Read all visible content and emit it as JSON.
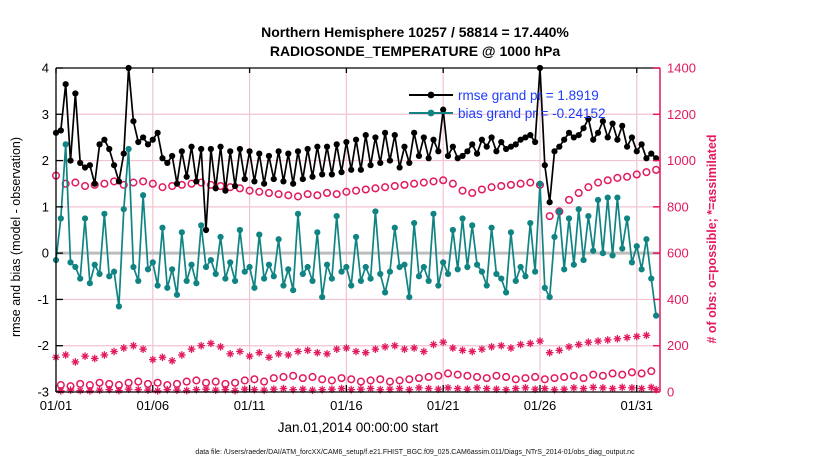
{
  "title": {
    "line1": "Northern Hemisphere 10257 / 58814 = 17.440%",
    "line2": "RADIOSONDE_TEMPERATURE @ 1000 hPa"
  },
  "legend": {
    "entries": [
      {
        "label": "rmse grand pr = 1.8919",
        "series": "rmse"
      },
      {
        "label": "bias grand pr = -0.24152",
        "series": "bias"
      }
    ]
  },
  "axes": {
    "left_label": "rmse and bias (model - observation)",
    "right_label": "# of obs: o=possible; *=assimilated",
    "xlabel": "Jan.01,2014 00:00:00 start",
    "left_ticks": [
      4,
      3,
      2,
      1,
      0,
      -1,
      -2,
      -3
    ],
    "right_ticks": [
      1400,
      1200,
      1000,
      800,
      600,
      400,
      200,
      0
    ],
    "x_ticks": [
      {
        "day": 1,
        "label": "01/01"
      },
      {
        "day": 6,
        "label": "01/06"
      },
      {
        "day": 11,
        "label": "01/11"
      },
      {
        "day": 16,
        "label": "01/16"
      },
      {
        "day": 21,
        "label": "01/21"
      },
      {
        "day": 26,
        "label": "01/26"
      },
      {
        "day": 31,
        "label": "01/31"
      }
    ]
  },
  "caption": "data file: /Users/raeder/DAI/ATM_forcXX/CAM6_setup/f.e21.FHIST_BGC.f09_025.CAM6assim.011/Diags_NTrS_2014-01/obs_diag_output.nc",
  "colors": {
    "rmse": "#000000",
    "bias": "#108383",
    "obs": "#e2195f",
    "legend_text": "#1e3cff",
    "grid": "#f2c3d2",
    "zero_line": "#bdbdbd"
  },
  "chart_data": {
    "type": "line",
    "title": "Northern Hemisphere 10257 / 58814 = 17.440% | RADIOSONDE_TEMPERATURE @ 1000 hPa",
    "xlabel": "Jan.01,2014 00:00:00 start",
    "ylabel_left": "rmse and bias (model - observation)",
    "ylabel_right": "# of obs: o=possible; *=assimilated",
    "ylim_left": [
      -3,
      4
    ],
    "ylim_right": [
      0,
      1400
    ],
    "xlim": [
      1,
      32.2
    ],
    "grid": true,
    "legend_position": "top-right",
    "grand_stats": {
      "rmse_grand_pr": 1.8919,
      "bias_grand_pr": -0.24152
    },
    "x_unit": "day of January 2014 (6-hourly bins)",
    "x": [
      1,
      1.25,
      1.5,
      1.75,
      2,
      2.25,
      2.5,
      2.75,
      3,
      3.25,
      3.5,
      3.75,
      4,
      4.25,
      4.5,
      4.75,
      5,
      5.25,
      5.5,
      5.75,
      6,
      6.25,
      6.5,
      6.75,
      7,
      7.25,
      7.5,
      7.75,
      8,
      8.25,
      8.5,
      8.75,
      9,
      9.25,
      9.5,
      9.75,
      10,
      10.25,
      10.5,
      10.75,
      11,
      11.25,
      11.5,
      11.75,
      12,
      12.25,
      12.5,
      12.75,
      13,
      13.25,
      13.5,
      13.75,
      14,
      14.25,
      14.5,
      14.75,
      15,
      15.25,
      15.5,
      15.75,
      16,
      16.25,
      16.5,
      16.75,
      17,
      17.25,
      17.5,
      17.75,
      18,
      18.25,
      18.5,
      18.75,
      19,
      19.25,
      19.5,
      19.75,
      20,
      20.25,
      20.5,
      20.75,
      21,
      21.25,
      21.5,
      21.75,
      22,
      22.25,
      22.5,
      22.75,
      23,
      23.25,
      23.5,
      23.75,
      24,
      24.25,
      24.5,
      24.75,
      25,
      25.25,
      25.5,
      25.75,
      26,
      26.25,
      26.5,
      26.75,
      27,
      27.25,
      27.5,
      27.75,
      28,
      28.25,
      28.5,
      28.75,
      29,
      29.25,
      29.5,
      29.75,
      30,
      30.25,
      30.5,
      30.75,
      31,
      31.25,
      31.5,
      31.75,
      32
    ],
    "series": [
      {
        "name": "rmse",
        "axis": "left",
        "color": "#000000",
        "marker": "dot",
        "values": [
          2.6,
          2.65,
          3.65,
          2,
          3.45,
          1.95,
          1.85,
          1.9,
          1.5,
          2.35,
          2.45,
          2.25,
          1.9,
          1.55,
          2.15,
          4,
          2.85,
          2.4,
          2.5,
          2.35,
          2.45,
          2.6,
          2.05,
          1.95,
          2.1,
          1.5,
          2.2,
          1.65,
          2.3,
          1.55,
          2.25,
          0.5,
          2.25,
          1.4,
          2.3,
          1.35,
          2.2,
          1.45,
          2.25,
          1.6,
          2.2,
          1.55,
          2.15,
          1.5,
          2.1,
          1.6,
          2.2,
          1.55,
          2.15,
          1.5,
          2.2,
          1.6,
          2.25,
          1.65,
          2.3,
          1.7,
          2.3,
          1.7,
          2.35,
          1.75,
          2.4,
          1.8,
          2.45,
          1.8,
          2.55,
          1.9,
          2.5,
          1.95,
          2.6,
          2,
          2.55,
          1.85,
          2.3,
          1.95,
          2.6,
          2.1,
          2.5,
          2.05,
          2.45,
          2.2,
          3.1,
          2.1,
          2.3,
          2.05,
          2.1,
          2.2,
          2.35,
          2.15,
          2.45,
          2.3,
          2.5,
          2.2,
          2.4,
          2.25,
          2.3,
          2.35,
          2.45,
          2.5,
          2.55,
          2.4,
          4,
          1.9,
          1.1,
          2.2,
          2.3,
          2.45,
          2.6,
          2.5,
          2.55,
          2.7,
          2.9,
          2.45,
          2.6,
          2.85,
          2.5,
          2.8,
          2.45,
          2.75,
          2.3,
          2.5,
          2.2,
          2.35,
          2.05,
          2.15,
          2.05
        ]
      },
      {
        "name": "bias",
        "axis": "left",
        "color": "#108383",
        "marker": "dot",
        "values": [
          -0.15,
          0.75,
          2.35,
          -0.2,
          -0.3,
          -0.55,
          0.75,
          -0.65,
          -0.25,
          -0.45,
          0.85,
          -0.5,
          -0.4,
          -1.15,
          0.95,
          2.25,
          -0.3,
          -0.6,
          1.25,
          -0.35,
          -0.2,
          -0.7,
          0.55,
          -0.75,
          -0.35,
          -0.9,
          0.45,
          -0.6,
          -0.25,
          -0.65,
          0.6,
          -0.3,
          -0.15,
          -0.45,
          0.35,
          -0.55,
          -0.2,
          -0.6,
          0.5,
          -0.4,
          -0.3,
          -0.75,
          0.4,
          -0.55,
          -0.25,
          -0.5,
          0.3,
          -0.7,
          -0.35,
          -0.8,
          0.85,
          -0.45,
          -0.3,
          -0.6,
          0.45,
          -0.95,
          -0.25,
          -0.55,
          0.8,
          -0.4,
          -0.3,
          -0.7,
          0.35,
          -0.6,
          -0.3,
          -0.55,
          0.9,
          -0.45,
          -0.85,
          -0.4,
          0.55,
          -0.3,
          -0.25,
          -0.95,
          0.65,
          -0.5,
          -0.3,
          -0.6,
          0.85,
          -0.7,
          -0.2,
          -0.45,
          0.5,
          -0.35,
          0.75,
          -0.3,
          0.6,
          -0.25,
          -0.4,
          -0.7,
          0.55,
          -0.45,
          -0.55,
          -0.85,
          0.45,
          -0.6,
          -0.3,
          -0.5,
          0.65,
          -0.4,
          1.5,
          -0.75,
          -0.95,
          0.35,
          0.9,
          -0.35,
          0.75,
          -0.25,
          0.95,
          -0.15,
          0.8,
          0.05,
          1.15,
          0,
          1.2,
          -0.05,
          1.2,
          0.1,
          0.75,
          -0.2,
          0.15,
          -0.35,
          0.3,
          -0.55,
          -1.35
        ]
      },
      {
        "name": "possible",
        "axis": "right",
        "color": "#e2195f",
        "marker": "circle",
        "values": [
          935,
          30,
          900,
          25,
          905,
          35,
          890,
          30,
          895,
          40,
          900,
          35,
          910,
          30,
          895,
          40,
          905,
          45,
          910,
          35,
          900,
          40,
          885,
          30,
          890,
          35,
          895,
          45,
          900,
          50,
          905,
          40,
          895,
          45,
          890,
          35,
          885,
          40,
          880,
          50,
          870,
          55,
          865,
          45,
          860,
          60,
          855,
          65,
          850,
          70,
          845,
          60,
          855,
          65,
          850,
          55,
          860,
          50,
          855,
          60,
          865,
          55,
          870,
          45,
          875,
          50,
          880,
          55,
          885,
          45,
          890,
          50,
          895,
          55,
          900,
          60,
          905,
          65,
          910,
          70,
          915,
          80,
          900,
          75,
          870,
          70,
          860,
          65,
          875,
          60,
          885,
          70,
          890,
          65,
          895,
          55,
          900,
          60,
          905,
          65,
          895,
          55,
          760,
          60,
          780,
          65,
          830,
          70,
          860,
          60,
          885,
          75,
          905,
          70,
          915,
          80,
          925,
          75,
          930,
          85,
          940,
          80,
          950,
          90,
          960
        ]
      },
      {
        "name": "assimilated",
        "axis": "right",
        "color": "#e2195f",
        "marker": "asterisk",
        "values": [
          150,
          5,
          160,
          8,
          130,
          6,
          155,
          5,
          145,
          8,
          160,
          10,
          175,
          6,
          190,
          12,
          200,
          10,
          185,
          8,
          140,
          5,
          150,
          10,
          135,
          8,
          160,
          6,
          185,
          10,
          200,
          12,
          210,
          8,
          195,
          10,
          165,
          6,
          175,
          12,
          155,
          10,
          170,
          8,
          150,
          12,
          165,
          15,
          160,
          10,
          175,
          12,
          180,
          8,
          170,
          10,
          165,
          12,
          185,
          15,
          190,
          10,
          175,
          12,
          170,
          15,
          185,
          10,
          195,
          12,
          200,
          15,
          185,
          10,
          190,
          18,
          175,
          15,
          205,
          12,
          215,
          18,
          190,
          15,
          180,
          12,
          175,
          18,
          185,
          15,
          195,
          12,
          200,
          10,
          190,
          15,
          205,
          18,
          210,
          12,
          220,
          15,
          170,
          10,
          180,
          12,
          195,
          18,
          205,
          15,
          215,
          20,
          220,
          18,
          225,
          15,
          230,
          20,
          235,
          18,
          240,
          15,
          245,
          20,
          10
        ]
      }
    ]
  }
}
